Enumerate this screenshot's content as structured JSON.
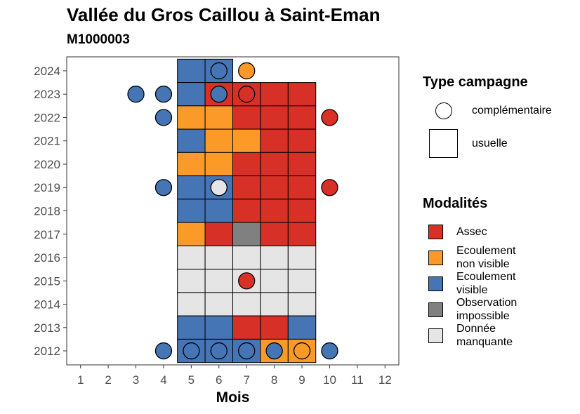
{
  "title": "Vallée du Gros Caillou à Saint-Eman",
  "subtitle": "M1000003",
  "legend": {
    "type_title": "Type campagne",
    "type_items": [
      {
        "label": "complémentaire",
        "shape": "circle"
      },
      {
        "label": "usuelle",
        "shape": "square"
      }
    ],
    "mod_title": "Modalités",
    "mod_items": [
      {
        "label": "Assec",
        "color": "#D73027"
      },
      {
        "label": "Ecoulement\nnon visible",
        "color": "#FB9A29"
      },
      {
        "label": "Ecoulement\nvisible",
        "color": "#4575B4"
      },
      {
        "label": "Observation\nimpossible",
        "color": "#808080"
      },
      {
        "label": "Donnée\nmanquante",
        "color": "#E5E5E5"
      }
    ]
  },
  "chart_data": {
    "type": "heatmap",
    "xlabel": "Mois",
    "ylabel": "",
    "x_ticks": [
      1,
      2,
      3,
      4,
      5,
      6,
      7,
      8,
      9,
      10,
      11,
      12
    ],
    "y_ticks": [
      2012,
      2013,
      2014,
      2015,
      2016,
      2017,
      2018,
      2019,
      2020,
      2021,
      2022,
      2023,
      2024
    ],
    "xlim": [
      0.5,
      12.5
    ],
    "ylim": [
      2011.4,
      2024.6
    ],
    "grid": false,
    "colors": {
      "Assec": "#D73027",
      "Ecoulement non visible": "#FB9A29",
      "Ecoulement visible": "#4575B4",
      "Observation impossible": "#808080",
      "Donnée manquante": "#E5E5E5"
    },
    "usuelle": [
      {
        "year": 2024,
        "month": 5,
        "modalite": "Ecoulement visible"
      },
      {
        "year": 2024,
        "month": 6,
        "modalite": "Ecoulement visible"
      },
      {
        "year": 2023,
        "month": 5,
        "modalite": "Ecoulement visible"
      },
      {
        "year": 2023,
        "month": 6,
        "modalite": "Assec"
      },
      {
        "year": 2023,
        "month": 7,
        "modalite": "Assec"
      },
      {
        "year": 2023,
        "month": 8,
        "modalite": "Assec"
      },
      {
        "year": 2023,
        "month": 9,
        "modalite": "Assec"
      },
      {
        "year": 2022,
        "month": 5,
        "modalite": "Ecoulement non visible"
      },
      {
        "year": 2022,
        "month": 6,
        "modalite": "Ecoulement non visible"
      },
      {
        "year": 2022,
        "month": 7,
        "modalite": "Assec"
      },
      {
        "year": 2022,
        "month": 8,
        "modalite": "Assec"
      },
      {
        "year": 2022,
        "month": 9,
        "modalite": "Assec"
      },
      {
        "year": 2021,
        "month": 5,
        "modalite": "Ecoulement visible"
      },
      {
        "year": 2021,
        "month": 6,
        "modalite": "Ecoulement non visible"
      },
      {
        "year": 2021,
        "month": 7,
        "modalite": "Ecoulement non visible"
      },
      {
        "year": 2021,
        "month": 8,
        "modalite": "Assec"
      },
      {
        "year": 2021,
        "month": 9,
        "modalite": "Assec"
      },
      {
        "year": 2020,
        "month": 5,
        "modalite": "Ecoulement non visible"
      },
      {
        "year": 2020,
        "month": 6,
        "modalite": "Ecoulement non visible"
      },
      {
        "year": 2020,
        "month": 7,
        "modalite": "Assec"
      },
      {
        "year": 2020,
        "month": 8,
        "modalite": "Assec"
      },
      {
        "year": 2020,
        "month": 9,
        "modalite": "Assec"
      },
      {
        "year": 2019,
        "month": 5,
        "modalite": "Ecoulement visible"
      },
      {
        "year": 2019,
        "month": 6,
        "modalite": "Ecoulement visible"
      },
      {
        "year": 2019,
        "month": 7,
        "modalite": "Assec"
      },
      {
        "year": 2019,
        "month": 8,
        "modalite": "Assec"
      },
      {
        "year": 2019,
        "month": 9,
        "modalite": "Assec"
      },
      {
        "year": 2018,
        "month": 5,
        "modalite": "Ecoulement visible"
      },
      {
        "year": 2018,
        "month": 6,
        "modalite": "Ecoulement visible"
      },
      {
        "year": 2018,
        "month": 7,
        "modalite": "Assec"
      },
      {
        "year": 2018,
        "month": 8,
        "modalite": "Assec"
      },
      {
        "year": 2018,
        "month": 9,
        "modalite": "Assec"
      },
      {
        "year": 2017,
        "month": 5,
        "modalite": "Ecoulement non visible"
      },
      {
        "year": 2017,
        "month": 6,
        "modalite": "Assec"
      },
      {
        "year": 2017,
        "month": 7,
        "modalite": "Observation impossible"
      },
      {
        "year": 2017,
        "month": 8,
        "modalite": "Assec"
      },
      {
        "year": 2017,
        "month": 9,
        "modalite": "Assec"
      },
      {
        "year": 2016,
        "month": 5,
        "modalite": "Donnée manquante"
      },
      {
        "year": 2016,
        "month": 6,
        "modalite": "Donnée manquante"
      },
      {
        "year": 2016,
        "month": 7,
        "modalite": "Donnée manquante"
      },
      {
        "year": 2016,
        "month": 8,
        "modalite": "Donnée manquante"
      },
      {
        "year": 2016,
        "month": 9,
        "modalite": "Donnée manquante"
      },
      {
        "year": 2015,
        "month": 5,
        "modalite": "Donnée manquante"
      },
      {
        "year": 2015,
        "month": 6,
        "modalite": "Donnée manquante"
      },
      {
        "year": 2015,
        "month": 7,
        "modalite": "Donnée manquante"
      },
      {
        "year": 2015,
        "month": 8,
        "modalite": "Donnée manquante"
      },
      {
        "year": 2015,
        "month": 9,
        "modalite": "Donnée manquante"
      },
      {
        "year": 2014,
        "month": 5,
        "modalite": "Donnée manquante"
      },
      {
        "year": 2014,
        "month": 6,
        "modalite": "Donnée manquante"
      },
      {
        "year": 2014,
        "month": 7,
        "modalite": "Donnée manquante"
      },
      {
        "year": 2014,
        "month": 8,
        "modalite": "Donnée manquante"
      },
      {
        "year": 2014,
        "month": 9,
        "modalite": "Donnée manquante"
      },
      {
        "year": 2013,
        "month": 5,
        "modalite": "Ecoulement visible"
      },
      {
        "year": 2013,
        "month": 6,
        "modalite": "Ecoulement visible"
      },
      {
        "year": 2013,
        "month": 7,
        "modalite": "Assec"
      },
      {
        "year": 2013,
        "month": 8,
        "modalite": "Assec"
      },
      {
        "year": 2013,
        "month": 9,
        "modalite": "Ecoulement visible"
      },
      {
        "year": 2012,
        "month": 5,
        "modalite": "Ecoulement visible"
      },
      {
        "year": 2012,
        "month": 6,
        "modalite": "Ecoulement visible"
      },
      {
        "year": 2012,
        "month": 7,
        "modalite": "Ecoulement visible"
      },
      {
        "year": 2012,
        "month": 8,
        "modalite": "Ecoulement non visible"
      },
      {
        "year": 2012,
        "month": 9,
        "modalite": "Ecoulement non visible"
      }
    ],
    "complementaire": [
      {
        "year": 2024,
        "month": 6,
        "modalite": "Ecoulement visible"
      },
      {
        "year": 2024,
        "month": 7,
        "modalite": "Ecoulement non visible"
      },
      {
        "year": 2023,
        "month": 3,
        "modalite": "Ecoulement visible"
      },
      {
        "year": 2023,
        "month": 4,
        "modalite": "Ecoulement visible"
      },
      {
        "year": 2023,
        "month": 6,
        "modalite": "Ecoulement visible"
      },
      {
        "year": 2023,
        "month": 7,
        "modalite": "Assec"
      },
      {
        "year": 2022,
        "month": 4,
        "modalite": "Ecoulement visible"
      },
      {
        "year": 2022,
        "month": 10,
        "modalite": "Assec"
      },
      {
        "year": 2019,
        "month": 4,
        "modalite": "Ecoulement visible"
      },
      {
        "year": 2019,
        "month": 6,
        "modalite": "Donnée manquante"
      },
      {
        "year": 2019,
        "month": 10,
        "modalite": "Assec"
      },
      {
        "year": 2015,
        "month": 7,
        "modalite": "Assec"
      },
      {
        "year": 2012,
        "month": 4,
        "modalite": "Ecoulement visible"
      },
      {
        "year": 2012,
        "month": 5,
        "modalite": "Ecoulement visible"
      },
      {
        "year": 2012,
        "month": 6,
        "modalite": "Ecoulement visible"
      },
      {
        "year": 2012,
        "month": 7,
        "modalite": "Ecoulement visible"
      },
      {
        "year": 2012,
        "month": 8,
        "modalite": "Ecoulement visible"
      },
      {
        "year": 2012,
        "month": 9,
        "modalite": "Ecoulement non visible"
      },
      {
        "year": 2012,
        "month": 10,
        "modalite": "Ecoulement visible"
      }
    ]
  }
}
